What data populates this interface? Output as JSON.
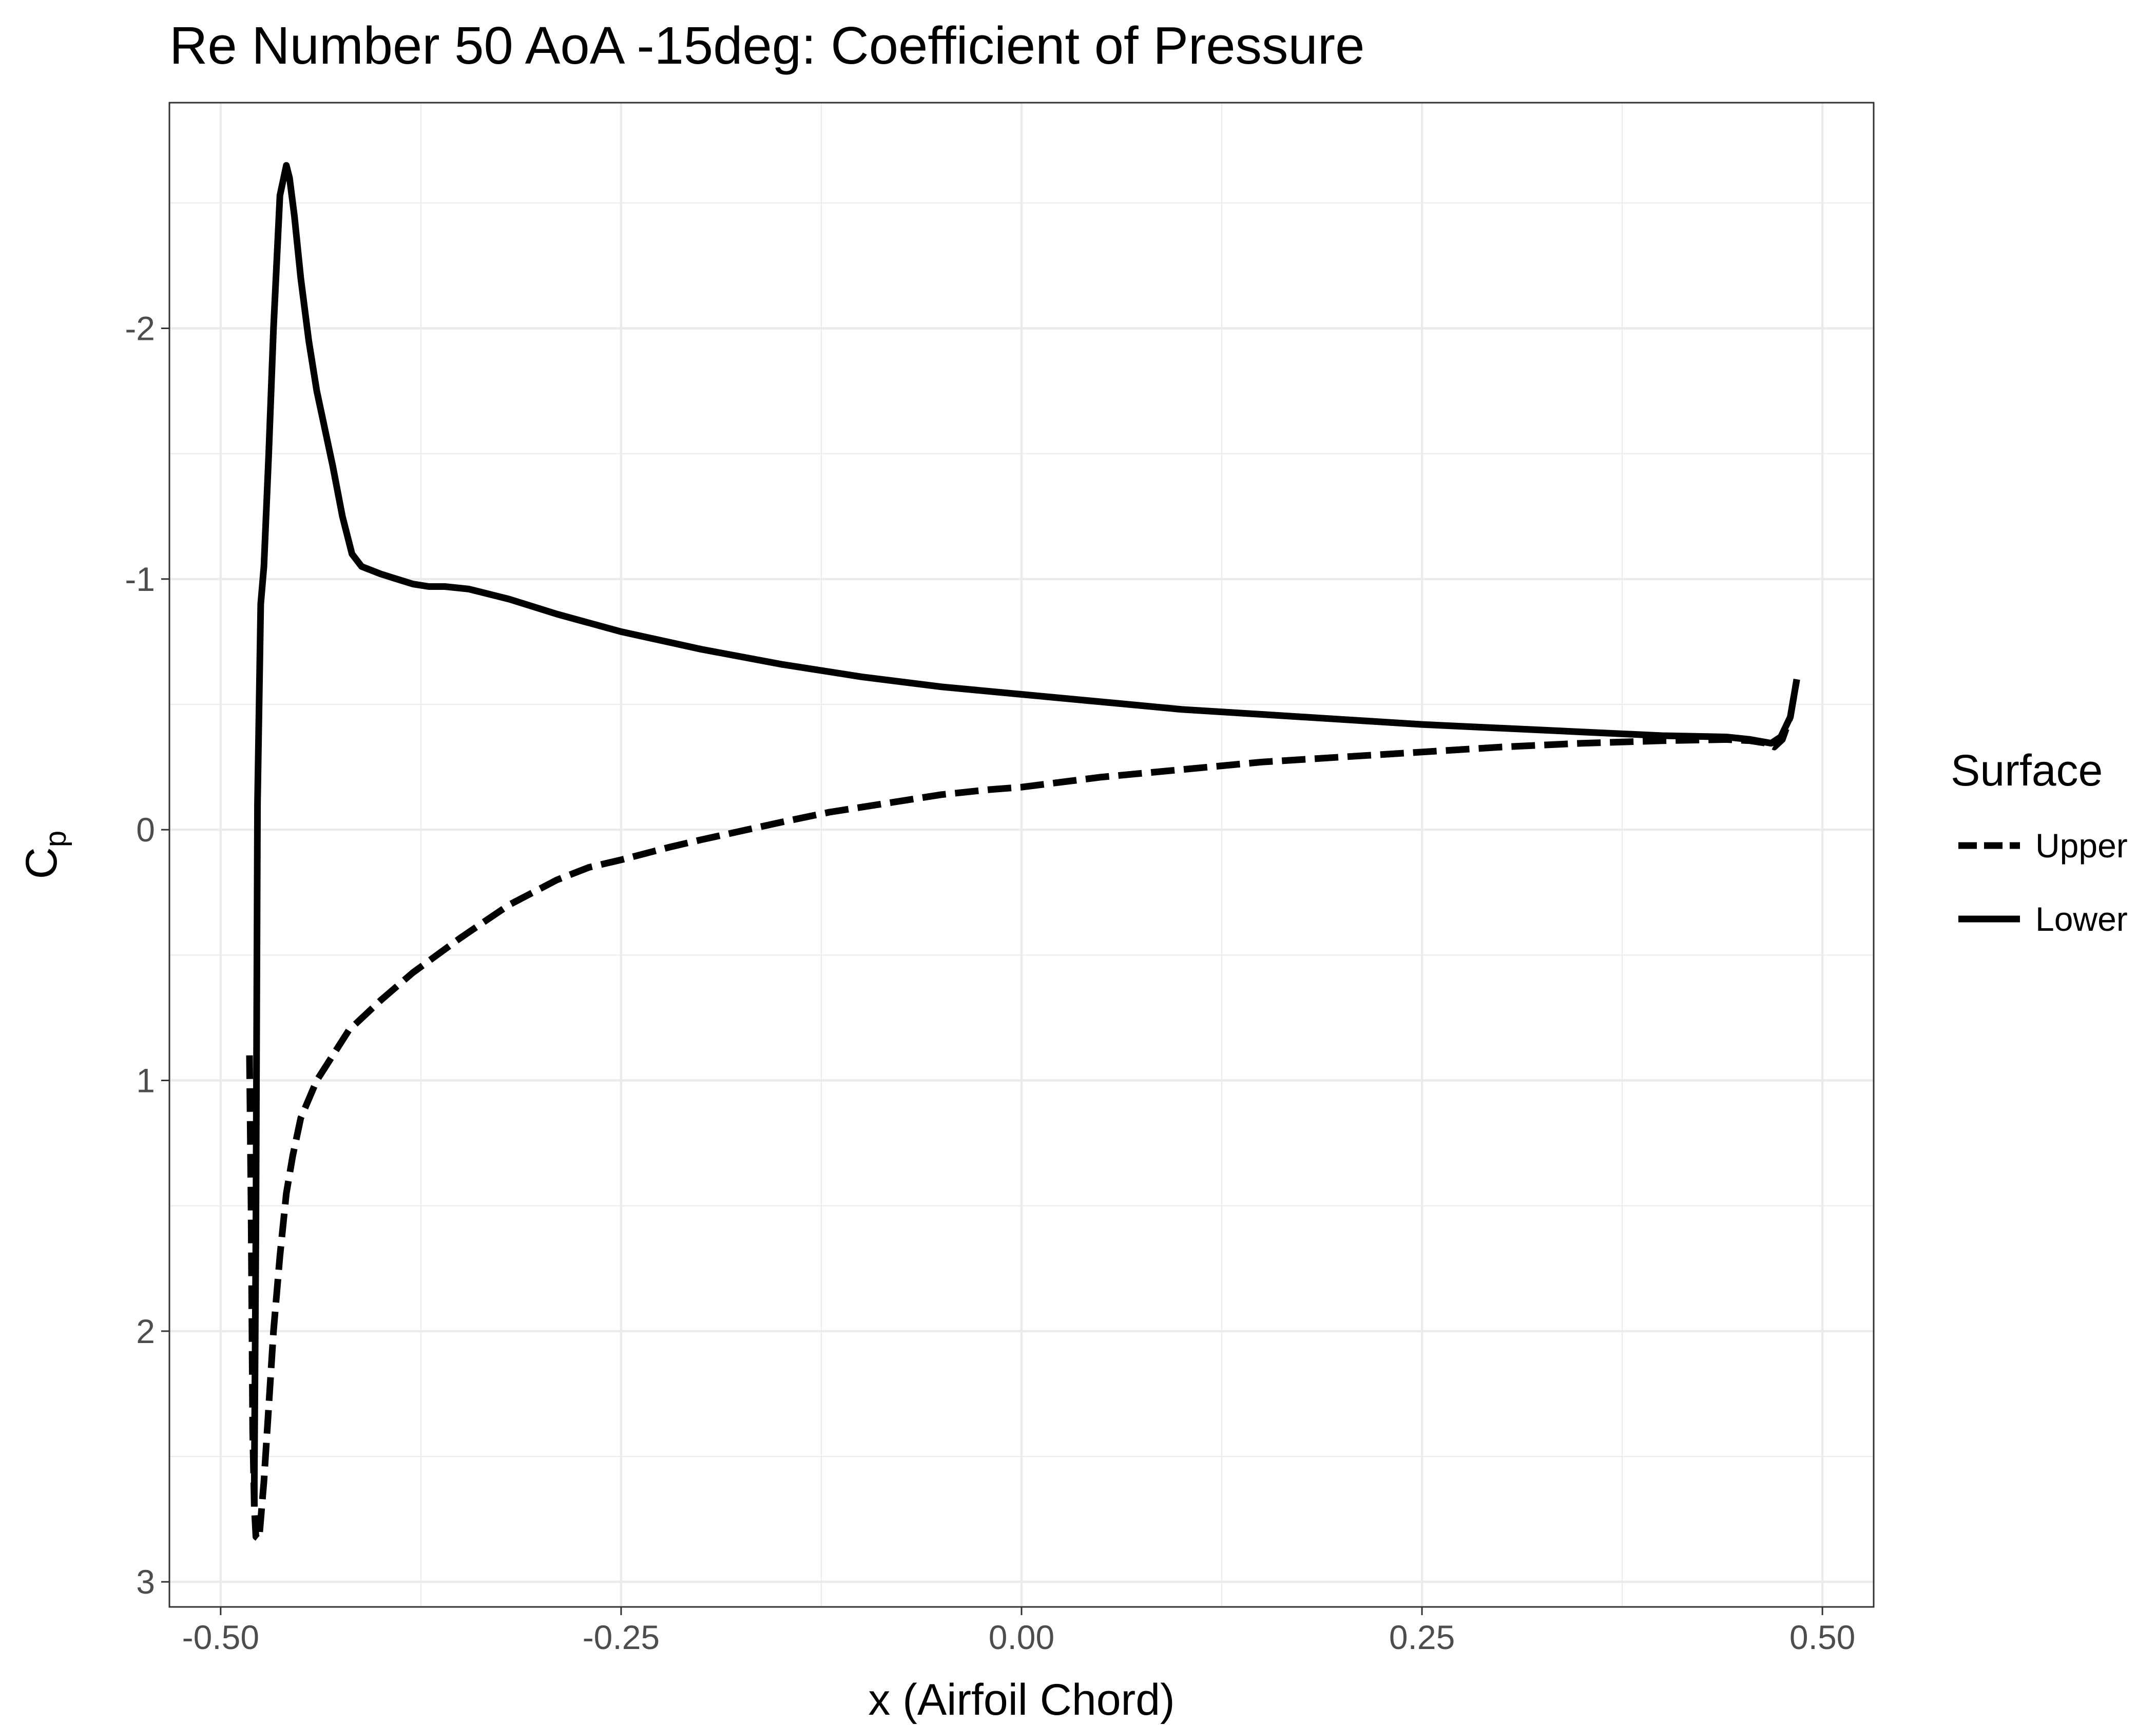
{
  "chart_data": {
    "type": "line",
    "title": "Re Number 50 AoA -15deg: Coefficient of Pressure",
    "xlabel": "x (Airfoil Chord)",
    "ylabel": "C",
    "ylabel_subscript": "p",
    "xlim": [
      -0.532,
      0.532
    ],
    "ylim": [
      3.1,
      -2.9
    ],
    "y_reversed": true,
    "grid": true,
    "x_ticks": [
      -0.5,
      -0.25,
      0.0,
      0.25,
      0.5
    ],
    "x_tick_labels": [
      "-0.50",
      "-0.25",
      "0.00",
      "0.25",
      "0.50"
    ],
    "y_ticks": [
      -2,
      -1,
      0,
      1,
      2,
      3
    ],
    "y_tick_labels": [
      "-2",
      "-1",
      "0",
      "1",
      "2",
      "3"
    ],
    "legend": {
      "title": "Surface",
      "position": "right"
    },
    "series": [
      {
        "name": "Upper",
        "linestyle": "dashed",
        "color": "#000000",
        "x": [
          -0.482,
          -0.481,
          -0.48,
          -0.479,
          -0.478,
          -0.476,
          -0.473,
          -0.47,
          -0.467,
          -0.463,
          -0.459,
          -0.455,
          -0.45,
          -0.44,
          -0.43,
          -0.42,
          -0.4,
          -0.38,
          -0.35,
          -0.32,
          -0.29,
          -0.27,
          -0.25,
          -0.22,
          -0.2,
          -0.15,
          -0.12,
          -0.08,
          -0.05,
          -0.02,
          0.0,
          0.05,
          0.1,
          0.15,
          0.2,
          0.25,
          0.3,
          0.35,
          0.4,
          0.44,
          0.455,
          0.465,
          0.47,
          0.475,
          0.48,
          0.484
        ],
        "values": [
          0.9,
          1.5,
          2.4,
          2.7,
          2.82,
          2.83,
          2.6,
          2.3,
          2.0,
          1.7,
          1.45,
          1.3,
          1.15,
          1.0,
          0.9,
          0.8,
          0.68,
          0.57,
          0.43,
          0.3,
          0.2,
          0.15,
          0.12,
          0.07,
          0.04,
          -0.03,
          -0.07,
          -0.11,
          -0.14,
          -0.16,
          -0.17,
          -0.21,
          -0.24,
          -0.27,
          -0.29,
          -0.31,
          -0.33,
          -0.345,
          -0.355,
          -0.36,
          -0.355,
          -0.345,
          -0.33,
          -0.36,
          -0.45,
          -0.6
        ]
      },
      {
        "name": "Lower",
        "linestyle": "solid",
        "color": "#000000",
        "x": [
          -0.479,
          -0.479,
          -0.478,
          -0.477,
          -0.475,
          -0.473,
          -0.47,
          -0.467,
          -0.463,
          -0.459,
          -0.457,
          -0.454,
          -0.45,
          -0.445,
          -0.44,
          -0.435,
          -0.43,
          -0.424,
          -0.418,
          -0.412,
          -0.4,
          -0.38,
          -0.37,
          -0.36,
          -0.345,
          -0.32,
          -0.29,
          -0.25,
          -0.2,
          -0.15,
          -0.1,
          -0.05,
          0.0,
          0.05,
          0.1,
          0.15,
          0.2,
          0.25,
          0.3,
          0.35,
          0.4,
          0.44,
          0.455,
          0.468,
          0.474,
          0.48,
          0.484
        ],
        "values": [
          2.7,
          2.6,
          1.6,
          -0.1,
          -0.9,
          -1.05,
          -1.5,
          -2.0,
          -2.53,
          -2.65,
          -2.6,
          -2.45,
          -2.2,
          -1.95,
          -1.75,
          -1.6,
          -1.45,
          -1.25,
          -1.1,
          -1.05,
          -1.02,
          -0.98,
          -0.97,
          -0.97,
          -0.96,
          -0.92,
          -0.86,
          -0.79,
          -0.72,
          -0.66,
          -0.61,
          -0.57,
          -0.54,
          -0.51,
          -0.48,
          -0.46,
          -0.44,
          -0.42,
          -0.405,
          -0.39,
          -0.375,
          -0.37,
          -0.36,
          -0.345,
          -0.37,
          -0.45,
          -0.6
        ]
      }
    ]
  }
}
